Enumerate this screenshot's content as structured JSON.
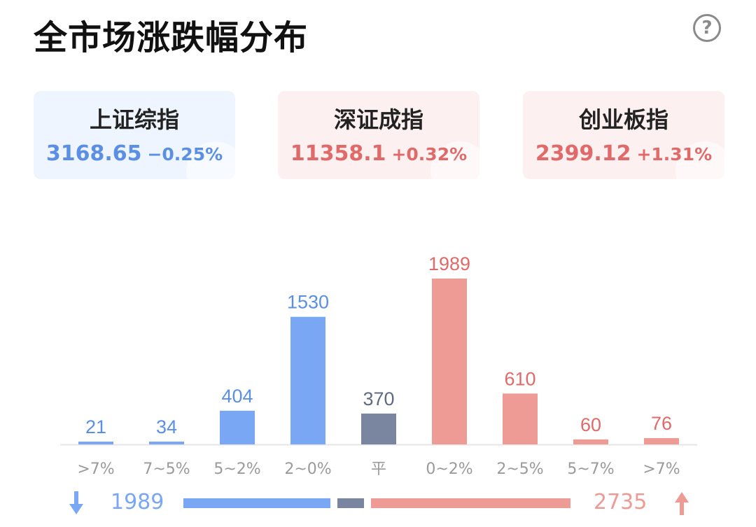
{
  "title": "全市场涨跌幅分布",
  "help_icon": "question-circle-icon",
  "indices": [
    {
      "name": "上证综指",
      "value": "3168.65",
      "change": "−0.25%",
      "color": "#5b8fe3"
    },
    {
      "name": "深证成指",
      "value": "11358.1",
      "change": "+0.32%",
      "color": "#e06a6a"
    },
    {
      "name": "创业板指",
      "value": "2399.12",
      "change": "+1.31%",
      "color": "#e06a6a"
    }
  ],
  "colors": {
    "down": "#7aa7f3",
    "flat": "#7a859f",
    "up": "#ee9a95",
    "down_text": "#5b8fe3",
    "up_text": "#e06a6a",
    "flat_text": "#616a80"
  },
  "chart_data": {
    "type": "bar",
    "title": "全市场涨跌幅分布",
    "categories": [
      ">7%",
      "7~5%",
      "5~2%",
      "2~0%",
      "平",
      "0~2%",
      "2~5%",
      "5~7%",
      ">7%"
    ],
    "values": [
      21,
      34,
      404,
      1530,
      370,
      1989,
      610,
      60,
      76
    ],
    "groups": [
      "down",
      "down",
      "down",
      "down",
      "flat",
      "up",
      "up",
      "up",
      "up"
    ],
    "data_labels": [
      "21",
      "34",
      "404",
      "1530",
      "370",
      "1989",
      "610",
      "60",
      "76"
    ],
    "ylim": [
      0,
      1989
    ],
    "grid": false,
    "xlabel": "",
    "ylabel": ""
  },
  "summary": {
    "down_icon": "arrow-down-icon",
    "down_count": "1989",
    "up_count": "2735",
    "up_icon": "arrow-up-icon"
  }
}
